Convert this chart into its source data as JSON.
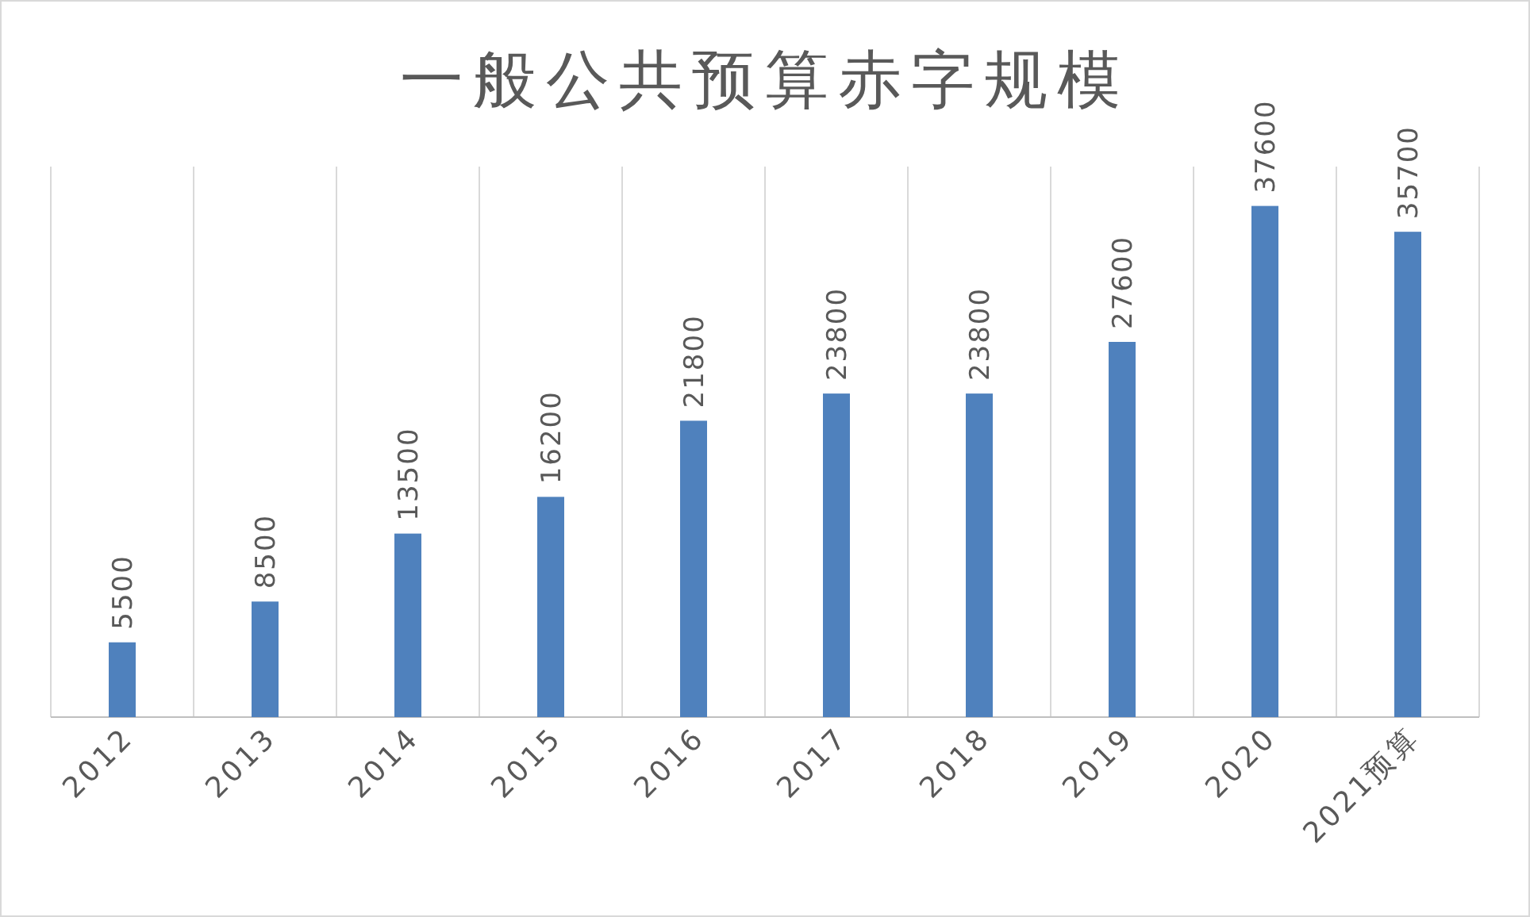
{
  "chart_data": {
    "type": "bar",
    "title": "一般公共预算赤字规模",
    "categories": [
      "2012",
      "2013",
      "2014",
      "2015",
      "2016",
      "2017",
      "2018",
      "2019",
      "2020",
      "2021预算"
    ],
    "values": [
      5500,
      8500,
      13500,
      16200,
      21800,
      23800,
      23800,
      27600,
      37600,
      35700
    ],
    "color": "#4f81bd",
    "data_labels": true,
    "grid": "x"
  }
}
